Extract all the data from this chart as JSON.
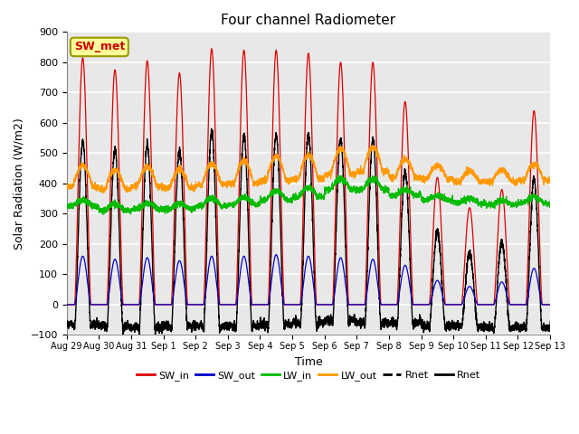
{
  "title": "Four channel Radiometer",
  "xlabel": "Time",
  "ylabel": "Solar Radiation (W/m2)",
  "ylim": [
    -100,
    900
  ],
  "annotation_text": "SW_met",
  "annotation_color": "#cc0000",
  "annotation_bg": "#ffff99",
  "bg_color": "#e8e8e8",
  "grid_color": "#ffffff",
  "x_tick_labels": [
    "Aug 29",
    "Aug 30",
    "Aug 31",
    "Sep 1",
    "Sep 2",
    "Sep 3",
    "Sep 4",
    "Sep 5",
    "Sep 6",
    "Sep 7",
    "Sep 8",
    "Sep 9",
    "Sep 10",
    "Sep 11",
    "Sep 12",
    "Sep 13"
  ],
  "num_days": 16,
  "SW_in_peak": [
    815,
    775,
    805,
    765,
    845,
    840,
    840,
    830,
    800,
    800,
    670,
    420,
    320,
    380,
    640,
    0
  ],
  "SW_out_peak": [
    160,
    150,
    155,
    145,
    160,
    160,
    165,
    160,
    155,
    150,
    130,
    80,
    60,
    75,
    120,
    0
  ],
  "LW_in_base": [
    325,
    310,
    315,
    315,
    325,
    330,
    345,
    355,
    380,
    380,
    360,
    345,
    335,
    330,
    335,
    340
  ],
  "LW_in_bump": [
    20,
    20,
    20,
    20,
    25,
    25,
    30,
    30,
    35,
    35,
    20,
    15,
    15,
    15,
    20,
    10
  ],
  "LW_out_base": [
    390,
    380,
    390,
    385,
    395,
    400,
    410,
    415,
    430,
    440,
    420,
    415,
    405,
    405,
    410,
    405
  ],
  "LW_out_bump": [
    70,
    65,
    65,
    60,
    70,
    75,
    80,
    80,
    85,
    80,
    60,
    45,
    35,
    40,
    55,
    20
  ],
  "colors": {
    "SW_in": "#dd0000",
    "SW_out": "#0000cc",
    "LW_in": "#00bb00",
    "LW_out": "#ff9900",
    "Rnet": "#000000"
  }
}
